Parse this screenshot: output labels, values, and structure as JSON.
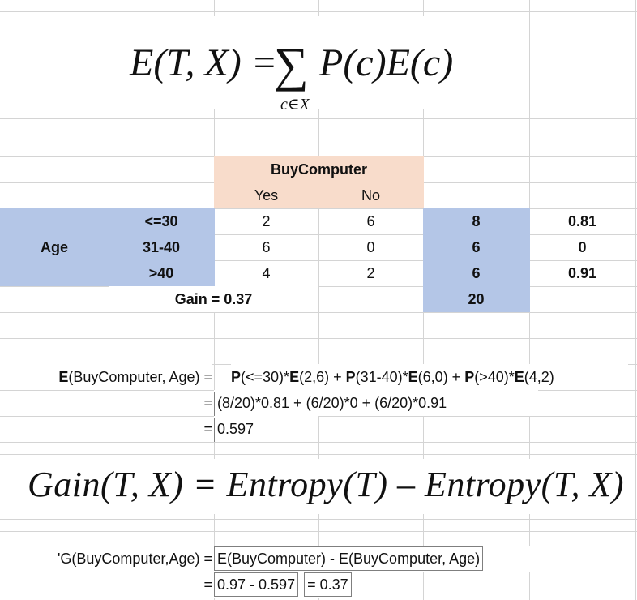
{
  "formula_entropy": {
    "lhs": "E(T, X) = ",
    "sigma": "∑",
    "rhs": "P(c)E(c)",
    "subscript": "c∈X"
  },
  "table": {
    "group_header": "BuyComputer",
    "col_yes": "Yes",
    "col_no": "No",
    "row_group_label": "Age",
    "rows": [
      {
        "label": "<=30",
        "yes": "2",
        "no": "6",
        "total": "8",
        "entropy": "0.81"
      },
      {
        "label": "31-40",
        "yes": "6",
        "no": "0",
        "total": "6",
        "entropy": "0"
      },
      {
        "label": ">40",
        "yes": "4",
        "no": "2",
        "total": "6",
        "entropy": "0.91"
      }
    ],
    "gain": "Gain = 0.37",
    "grand_total": "20"
  },
  "calc": {
    "label": {
      "bold": "E",
      "rest": "(BuyComputer, Age) = "
    },
    "line1": [
      {
        "t": "P",
        "b": true
      },
      {
        "t": "(<=30)*",
        "b": false
      },
      {
        "t": "E",
        "b": true
      },
      {
        "t": "(2,6) + ",
        "b": false
      },
      {
        "t": "P",
        "b": true
      },
      {
        "t": "(31-40)*",
        "b": false
      },
      {
        "t": "E",
        "b": true
      },
      {
        "t": "(6,0) + ",
        "b": false
      },
      {
        "t": "P",
        "b": true
      },
      {
        "t": "(>40)*",
        "b": false
      },
      {
        "t": "E",
        "b": true
      },
      {
        "t": "(4,2)",
        "b": false
      }
    ],
    "eq": "=",
    "line2": "(8/20)*0.81 + (6/20)*0 + (6/20)*0.91",
    "line3": "0.597"
  },
  "formula_gain": {
    "text": "Gain(T, X) = Entropy(T) – Entropy(T, X)"
  },
  "gain_calc": {
    "label": "'G(BuyComputer,Age) =",
    "line1": "E(BuyComputer) - E(BuyComputer, Age)",
    "eq": "=",
    "value_a": "0.97 - 0.597",
    "value_b": "= 0.37"
  },
  "colors": {
    "header_fill": "#f8dccb",
    "highlight_fill": "#b4c6e7",
    "gridline": "#d4d4d4"
  }
}
